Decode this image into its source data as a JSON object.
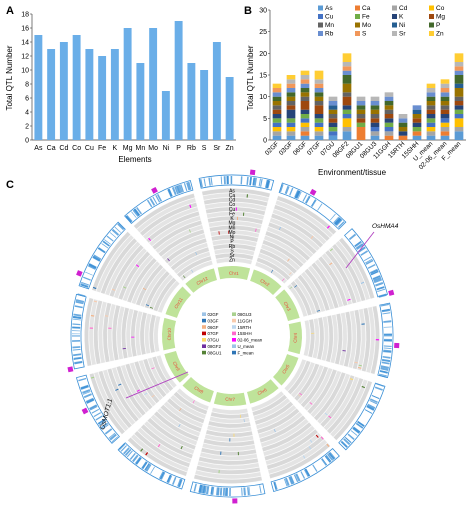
{
  "panel_a": {
    "letter": "A"
  },
  "panel_b": {
    "letter": "B"
  },
  "panel_c": {
    "letter": "C"
  },
  "colors": {
    "bar_a": "#6aaee8",
    "elements": {
      "As": "#5b9bd5",
      "Ca": "#ed7d31",
      "Cd": "#a5a5a5",
      "Co": "#ffc000",
      "Cu": "#4472c4",
      "Fe": "#70ad47",
      "K": "#264478",
      "Mg": "#9e480e",
      "Mn": "#636363",
      "Mo": "#997300",
      "Ni": "#255e91",
      "P": "#43682b",
      "Rb": "#698ed0",
      "S": "#f1975a",
      "Sr": "#b7b7b7",
      "Zn": "#ffcd33"
    },
    "circos_env": [
      "#9dc3e6",
      "#2e75b6",
      "#f4b183",
      "#c00000",
      "#ffd966",
      "#7030a0",
      "#548235",
      "#a9d18e",
      "#f8cbad",
      "#bdd7ee",
      "#ff66cc",
      "#ff00ff"
    ],
    "chr_ring": "#bfe39a",
    "chr_label": "#e84a3a",
    "arrow": "#b040c0"
  },
  "chart_data": [
    {
      "type": "bar",
      "xlabel": "Elements",
      "ylabel": "Total QTL Number",
      "ylim": [
        0,
        18
      ],
      "yticks": [
        0,
        2,
        4,
        6,
        8,
        10,
        12,
        14,
        16,
        18
      ],
      "categories": [
        "As",
        "Ca",
        "Cd",
        "Co",
        "Cu",
        "Fe",
        "K",
        "Mg",
        "Mn",
        "Mo",
        "Ni",
        "P",
        "Rb",
        "S",
        "Sr",
        "Zn"
      ],
      "values": [
        15,
        13,
        14,
        15,
        13,
        12,
        13,
        16,
        11,
        16,
        7,
        17,
        11,
        10,
        14,
        9
      ]
    },
    {
      "type": "bar",
      "stacked": true,
      "xlabel": "Environment/tissue",
      "ylabel": "Total QTL Number",
      "ylim": [
        0,
        30
      ],
      "yticks": [
        0,
        5,
        10,
        15,
        20,
        25,
        30
      ],
      "legend_position": "top",
      "categories": [
        "02GF",
        "03GF",
        "06GF",
        "07GF",
        "07GU",
        "08GF2",
        "08GU1",
        "08GU3",
        "11GGH",
        "15RTH",
        "15SHH",
        "U_mean",
        "02-06_mean",
        "F_mean"
      ],
      "series": [
        {
          "name": "As",
          "values": [
            1,
            1,
            1,
            1,
            1,
            2,
            0,
            1,
            0,
            0,
            1,
            1,
            1,
            2
          ]
        },
        {
          "name": "Ca",
          "values": [
            0,
            0,
            1,
            0,
            0,
            0,
            3,
            0,
            1,
            1,
            1,
            0,
            1,
            0
          ]
        },
        {
          "name": "Cd",
          "values": [
            1,
            1,
            1,
            1,
            0,
            1,
            0,
            1,
            1,
            0,
            0,
            1,
            1,
            1
          ]
        },
        {
          "name": "Co",
          "values": [
            1,
            1,
            1,
            1,
            0,
            2,
            0,
            0,
            0,
            0,
            0,
            1,
            1,
            2
          ]
        },
        {
          "name": "Cu",
          "values": [
            1,
            1,
            1,
            1,
            1,
            1,
            0,
            1,
            1,
            0,
            0,
            1,
            1,
            1
          ]
        },
        {
          "name": "Fe",
          "values": [
            1,
            1,
            1,
            1,
            1,
            1,
            1,
            0,
            1,
            0,
            1,
            1,
            0,
            1
          ]
        },
        {
          "name": "K",
          "values": [
            1,
            2,
            1,
            1,
            1,
            1,
            0,
            1,
            1,
            1,
            1,
            1,
            1,
            1
          ]
        },
        {
          "name": "Mg",
          "values": [
            1,
            1,
            2,
            2,
            1,
            2,
            1,
            1,
            1,
            0,
            1,
            1,
            1,
            1
          ]
        },
        {
          "name": "Mn",
          "values": [
            1,
            1,
            1,
            1,
            1,
            1,
            1,
            1,
            1,
            0,
            0,
            1,
            1,
            1
          ]
        },
        {
          "name": "Mo",
          "values": [
            1,
            1,
            1,
            1,
            1,
            2,
            1,
            1,
            1,
            1,
            1,
            1,
            1,
            2
          ]
        },
        {
          "name": "Ni",
          "values": [
            0,
            0,
            0,
            0,
            1,
            0,
            0,
            0,
            0,
            0,
            1,
            0,
            0,
            1
          ]
        },
        {
          "name": "P",
          "values": [
            1,
            1,
            1,
            1,
            0,
            2,
            1,
            1,
            1,
            1,
            0,
            1,
            1,
            2
          ]
        },
        {
          "name": "Rb",
          "values": [
            1,
            1,
            1,
            1,
            1,
            1,
            1,
            1,
            1,
            1,
            1,
            1,
            1,
            1
          ]
        },
        {
          "name": "S",
          "values": [
            1,
            1,
            1,
            1,
            0,
            1,
            0,
            0,
            0,
            0,
            0,
            0,
            1,
            1
          ]
        },
        {
          "name": "Sr",
          "values": [
            0,
            1,
            1,
            1,
            1,
            1,
            1,
            1,
            1,
            1,
            0,
            1,
            1,
            1
          ]
        },
        {
          "name": "Zn",
          "values": [
            1,
            1,
            1,
            2,
            0,
            2,
            0,
            0,
            0,
            0,
            0,
            1,
            1,
            2
          ]
        }
      ]
    },
    {
      "type": "circos",
      "track_labels": [
        "As",
        "Ca",
        "Cd",
        "Co",
        "Cu",
        "Fe",
        "K",
        "Mg",
        "Mn",
        "Mo",
        "Ni",
        "P",
        "Rb",
        "S",
        "Sr",
        "Zn"
      ],
      "chromosomes": [
        "Chr1",
        "Chr2",
        "Chr3",
        "Chr4",
        "Chr5",
        "Chr6",
        "Chr7",
        "Chr8",
        "Chr9",
        "Chr10",
        "Chr11",
        "Chr12"
      ],
      "env_legend": [
        "02GF",
        "03GF",
        "06GF",
        "07GF",
        "07GU",
        "08GF2",
        "08GU1",
        "08GU3",
        "11GGH",
        "15RTH",
        "15SHH",
        "02-06_mean",
        "U_mean",
        "F_mean"
      ],
      "annotations": [
        "OsHMA4",
        "OsMOT1;1"
      ]
    }
  ]
}
